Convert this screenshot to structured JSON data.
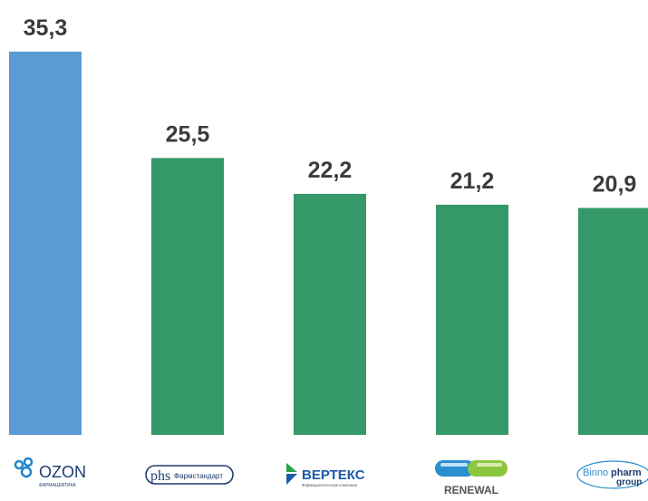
{
  "chart_data": {
    "type": "bar",
    "categories": [
      "OZON",
      "Фармстандарт",
      "ВЕРТЕКС",
      "RENEWAL",
      "Binnopharm group"
    ],
    "values": [
      35.3,
      25.5,
      22.2,
      21.2,
      20.9
    ],
    "value_labels": [
      "35,3",
      "25,5",
      "22,2",
      "21,2",
      "20,9"
    ],
    "colors": [
      "#5b9bd5",
      "#359868",
      "#359868",
      "#359868",
      "#359868"
    ],
    "ylim": [
      0,
      35.3
    ],
    "grid": false
  },
  "logos": {
    "ozon": {
      "name": "OZON",
      "sub": "ФАРМАЦЕВТИКА"
    },
    "pharmstandard": {
      "mark": "phs",
      "name": "Фармстандарт"
    },
    "vertex": {
      "name": "ВЕРТЕКС",
      "sub": "Фармацевтическая компания"
    },
    "renewal": {
      "name": "RENEWAL"
    },
    "binno": {
      "line1a": "Binno",
      "line1b": "pharm",
      "line2": "group"
    }
  }
}
